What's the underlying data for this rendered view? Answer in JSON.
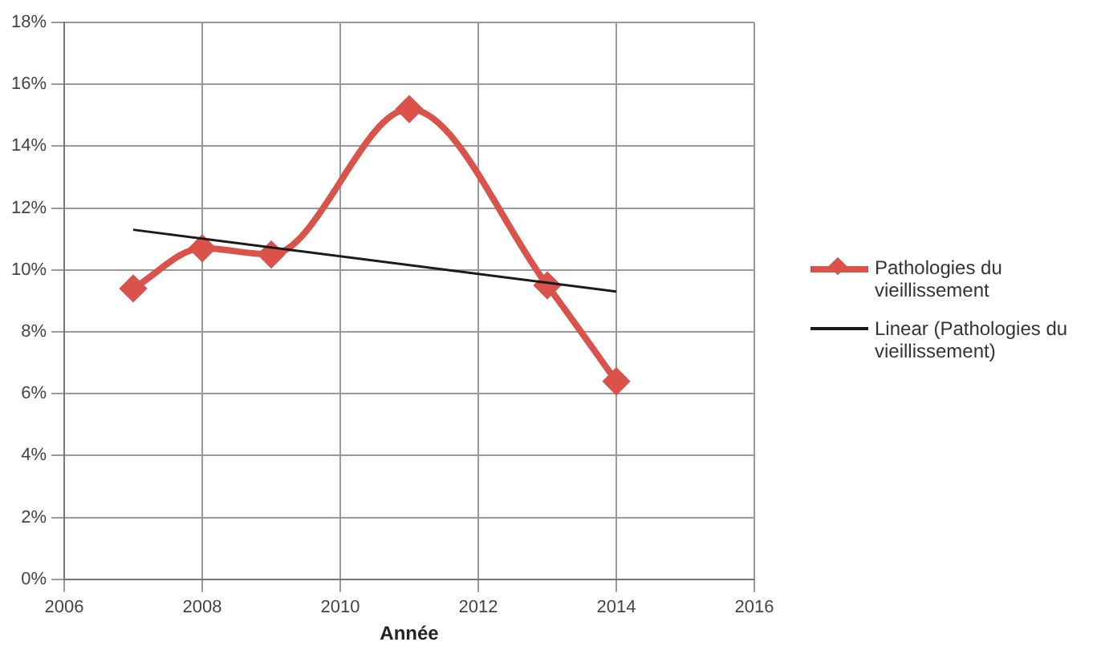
{
  "chart_data": {
    "type": "line",
    "xlabel": "Année",
    "x": [
      2007,
      2008,
      2009,
      2011,
      2013,
      2014
    ],
    "series": [
      {
        "name": "Pathologies du vieillissement",
        "color": "#d9534a",
        "values": [
          9.4,
          10.7,
          10.5,
          15.2,
          9.5,
          6.4
        ],
        "marker": "diamond"
      },
      {
        "name": "Linear (Pathologies du vieillissement)",
        "color": "#1a1a1a",
        "x": [
          2007,
          2014
        ],
        "values": [
          11.3,
          9.3
        ],
        "marker": "none"
      }
    ],
    "xlim": [
      2006,
      2016
    ],
    "xticks": [
      2006,
      2008,
      2010,
      2012,
      2014,
      2016
    ],
    "ylim": [
      0,
      18
    ],
    "yticks": [
      {
        "value": 0,
        "label": "0%"
      },
      {
        "value": 2,
        "label": "2%"
      },
      {
        "value": 4,
        "label": "4%"
      },
      {
        "value": 6,
        "label": "6%"
      },
      {
        "value": 8,
        "label": "8%"
      },
      {
        "value": 10,
        "label": "10%"
      },
      {
        "value": 12,
        "label": "12%"
      },
      {
        "value": 14,
        "label": "14%"
      },
      {
        "value": 16,
        "label": "16%"
      },
      {
        "value": 18,
        "label": "18%"
      }
    ],
    "grid": true,
    "legend": "right"
  }
}
